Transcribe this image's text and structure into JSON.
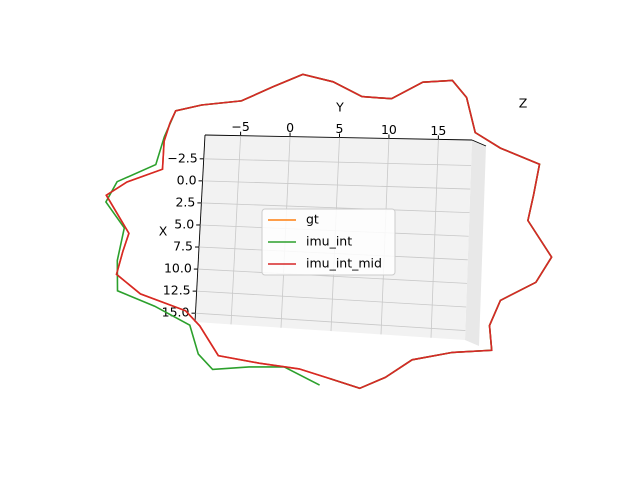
{
  "chart_data": {
    "type": "line3d",
    "xlabel": "X",
    "ylabel": "Y",
    "zlabel": "Z",
    "xlim": [
      -5.2,
      16
    ],
    "ylim": [
      -8.6,
      18.4
    ],
    "xticks": [
      {
        "value": -2.5,
        "label": "−2.5"
      },
      {
        "value": 0,
        "label": "0.0"
      },
      2.5,
      {
        "value": 5,
        "label": "5.0"
      },
      7.5,
      {
        "value": 10,
        "label": "10.0"
      },
      12.5,
      {
        "value": 15,
        "label": "15.0"
      }
    ],
    "yticks": [
      {
        "value": -5,
        "label": "−5"
      },
      0,
      5,
      10,
      15
    ],
    "grid": true,
    "legend": "center",
    "series": [
      {
        "name": "gt",
        "color": "#ff7f0e",
        "y": [
          -12.2,
          -11.7,
          -9.1,
          -5.1,
          -2.0,
          1.0,
          4.1,
          7.1,
          10.1,
          13.2,
          16.2,
          17.7,
          18.7,
          21.3,
          25.3,
          24.8,
          24.3,
          26.8,
          25.3,
          21.8,
          20.8,
          21.1,
          17.2,
          13.2,
          10.6,
          8.1,
          5.1,
          2.0,
          -2.0,
          -6.1,
          -8.1,
          -9.6,
          -14.2,
          -16.7,
          -16.2,
          -15.7,
          -18.2,
          -16.2,
          -12.7,
          -12.7,
          -12.2
        ],
        "x": [
          -6.5,
          -7.9,
          -8.6,
          -9.1,
          -10.7,
          -12.1,
          -11.3,
          -9.7,
          -9.5,
          -11.3,
          -11.5,
          -9.7,
          -6.0,
          -4.4,
          -2.8,
          0.4,
          3.1,
          6.8,
          9.5,
          11.6,
          14.3,
          16.9,
          17.4,
          18.5,
          20.6,
          22.0,
          21.2,
          20.4,
          20.1,
          19.6,
          16.4,
          14.8,
          13.2,
          11.1,
          8.4,
          6.3,
          2.0,
          0.4,
          -1.2,
          -4.4,
          -6.5
        ]
      },
      {
        "name": "imu_int",
        "color": "#2ca02c",
        "y": [
          5.1,
          8.1,
          10.6,
          13.2,
          17.2,
          21.1,
          20.8,
          21.8,
          25.3,
          26.8,
          24.3,
          24.8,
          25.3,
          21.3,
          18.7,
          17.7,
          16.2,
          13.2,
          10.1,
          7.1,
          4.1,
          1.0,
          -2.0,
          -5.1,
          -9.1,
          -11.7,
          -12.7,
          -13.4,
          -17.2,
          -18.2,
          -16.2,
          -16.7,
          -16.5,
          -12.7,
          -9.1,
          -8.1,
          -6.6,
          -3.0,
          0.5,
          4.1
        ],
        "x": [
          21.2,
          22.0,
          20.6,
          18.5,
          17.4,
          16.9,
          14.3,
          11.6,
          9.5,
          6.8,
          3.1,
          0.4,
          -2.8,
          -4.4,
          -6.0,
          -9.7,
          -11.5,
          -11.3,
          -9.5,
          -9.7,
          -11.3,
          -12.1,
          -10.7,
          -9.1,
          -8.6,
          -7.9,
          -4.9,
          -1.7,
          0.4,
          2.8,
          5.7,
          9.5,
          13.0,
          14.5,
          16.4,
          19.6,
          21.2,
          20.6,
          20.3,
          22.0
        ]
      },
      {
        "name": "imu_int_mid",
        "color": "#d62728",
        "y": [
          -12.2,
          -11.7,
          -9.1,
          -5.1,
          -2.0,
          1.0,
          4.1,
          7.1,
          10.1,
          13.2,
          16.2,
          17.7,
          18.7,
          21.3,
          25.3,
          24.8,
          24.3,
          26.8,
          25.3,
          21.8,
          20.8,
          21.1,
          17.2,
          13.2,
          10.6,
          8.1,
          5.1,
          2.0,
          -2.0,
          -6.1,
          -8.1,
          -9.6,
          -14.2,
          -16.7,
          -16.2,
          -15.7,
          -18.2,
          -16.2,
          -12.7,
          -12.7,
          -12.2
        ],
        "x": [
          -6.5,
          -7.9,
          -8.6,
          -9.1,
          -10.7,
          -12.1,
          -11.3,
          -9.7,
          -9.5,
          -11.3,
          -11.5,
          -9.7,
          -6.0,
          -4.4,
          -2.8,
          0.4,
          3.1,
          6.8,
          9.5,
          11.6,
          14.3,
          16.9,
          17.4,
          18.5,
          20.6,
          22.0,
          21.2,
          20.4,
          20.1,
          19.6,
          16.4,
          14.8,
          13.2,
          11.1,
          8.4,
          6.3,
          2.0,
          0.4,
          -1.2,
          -4.4,
          -6.5
        ]
      }
    ]
  }
}
